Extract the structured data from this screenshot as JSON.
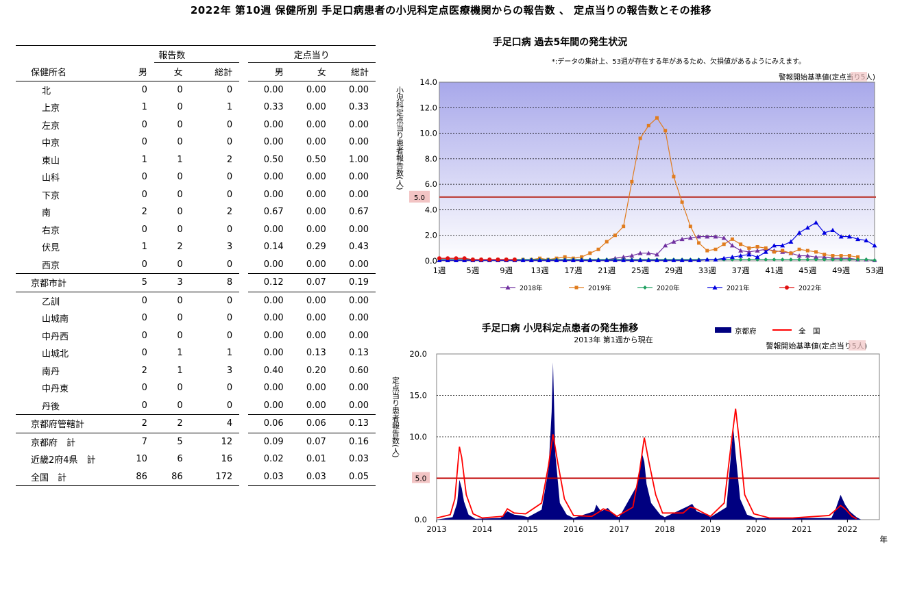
{
  "page_title": "2022年 第10週 保健所別 手足口病患者の小児科定点医療機関からの報告数 、 定点当りの報告数とその推移",
  "table": {
    "group_headers": {
      "reports": "報告数",
      "per_site": "定点当り"
    },
    "columns": [
      "保健所名",
      "男",
      "女",
      "総計",
      "男",
      "女",
      "総計"
    ],
    "rows": [
      {
        "name": "北",
        "m": "0",
        "f": "0",
        "t": "0",
        "pm": "0.00",
        "pf": "0.00",
        "pt": "0.00",
        "kind": "sub"
      },
      {
        "name": "上京",
        "m": "1",
        "f": "0",
        "t": "1",
        "pm": "0.33",
        "pf": "0.00",
        "pt": "0.33",
        "kind": "sub"
      },
      {
        "name": "左京",
        "m": "0",
        "f": "0",
        "t": "0",
        "pm": "0.00",
        "pf": "0.00",
        "pt": "0.00",
        "kind": "sub"
      },
      {
        "name": "中京",
        "m": "0",
        "f": "0",
        "t": "0",
        "pm": "0.00",
        "pf": "0.00",
        "pt": "0.00",
        "kind": "sub"
      },
      {
        "name": "東山",
        "m": "1",
        "f": "1",
        "t": "2",
        "pm": "0.50",
        "pf": "0.50",
        "pt": "1.00",
        "kind": "sub"
      },
      {
        "name": "山科",
        "m": "0",
        "f": "0",
        "t": "0",
        "pm": "0.00",
        "pf": "0.00",
        "pt": "0.00",
        "kind": "sub"
      },
      {
        "name": "下京",
        "m": "0",
        "f": "0",
        "t": "0",
        "pm": "0.00",
        "pf": "0.00",
        "pt": "0.00",
        "kind": "sub"
      },
      {
        "name": "南",
        "m": "2",
        "f": "0",
        "t": "2",
        "pm": "0.67",
        "pf": "0.00",
        "pt": "0.67",
        "kind": "sub"
      },
      {
        "name": "右京",
        "m": "0",
        "f": "0",
        "t": "0",
        "pm": "0.00",
        "pf": "0.00",
        "pt": "0.00",
        "kind": "sub"
      },
      {
        "name": "伏見",
        "m": "1",
        "f": "2",
        "t": "3",
        "pm": "0.14",
        "pf": "0.29",
        "pt": "0.43",
        "kind": "sub"
      },
      {
        "name": "西京",
        "m": "0",
        "f": "0",
        "t": "0",
        "pm": "0.00",
        "pf": "0.00",
        "pt": "0.00",
        "kind": "sub-last"
      },
      {
        "name": "京都市計",
        "m": "5",
        "f": "3",
        "t": "8",
        "pm": "0.12",
        "pf": "0.07",
        "pt": "0.19",
        "kind": "total"
      },
      {
        "name": "乙訓",
        "m": "0",
        "f": "0",
        "t": "0",
        "pm": "0.00",
        "pf": "0.00",
        "pt": "0.00",
        "kind": "sub"
      },
      {
        "name": "山城南",
        "m": "0",
        "f": "0",
        "t": "0",
        "pm": "0.00",
        "pf": "0.00",
        "pt": "0.00",
        "kind": "sub"
      },
      {
        "name": "中丹西",
        "m": "0",
        "f": "0",
        "t": "0",
        "pm": "0.00",
        "pf": "0.00",
        "pt": "0.00",
        "kind": "sub"
      },
      {
        "name": "山城北",
        "m": "0",
        "f": "1",
        "t": "1",
        "pm": "0.00",
        "pf": "0.13",
        "pt": "0.13",
        "kind": "sub"
      },
      {
        "name": "南丹",
        "m": "2",
        "f": "1",
        "t": "3",
        "pm": "0.40",
        "pf": "0.20",
        "pt": "0.60",
        "kind": "sub"
      },
      {
        "name": "中丹東",
        "m": "0",
        "f": "0",
        "t": "0",
        "pm": "0.00",
        "pf": "0.00",
        "pt": "0.00",
        "kind": "sub"
      },
      {
        "name": "丹後",
        "m": "0",
        "f": "0",
        "t": "0",
        "pm": "0.00",
        "pf": "0.00",
        "pt": "0.00",
        "kind": "sub-last"
      },
      {
        "name": "京都府管轄計",
        "m": "2",
        "f": "2",
        "t": "4",
        "pm": "0.06",
        "pf": "0.06",
        "pt": "0.13",
        "kind": "total"
      },
      {
        "name": "京都府　計",
        "m": "7",
        "f": "5",
        "t": "12",
        "pm": "0.09",
        "pf": "0.07",
        "pt": "0.16",
        "kind": "grand"
      },
      {
        "name": "近畿2府4県　計",
        "m": "10",
        "f": "6",
        "t": "16",
        "pm": "0.02",
        "pf": "0.01",
        "pt": "0.03",
        "kind": "grand"
      },
      {
        "name": "全国　計",
        "m": "86",
        "f": "86",
        "t": "172",
        "pm": "0.03",
        "pf": "0.03",
        "pt": "0.05",
        "kind": "grand-last"
      }
    ]
  },
  "chart_data": [
    {
      "type": "line",
      "title": "手足口病 過去5年間の発生状況",
      "note": "*:データの集計上、53週が存在する年があるため、欠損値があるようにみえます。",
      "threshold_label": "警報開始基準値(定点当り5人)",
      "threshold_label_prefix": "警報開始基準値(定点当り",
      "threshold_label_hl": "5人",
      "threshold_label_suffix": ")",
      "threshold": 5.0,
      "threshold_tag": "5.0",
      "ylabel": "小児科定点当り患者報告数(人)",
      "ylim": [
        0,
        14
      ],
      "yticks": [
        "0.0",
        "2.0",
        "4.0",
        "6.0",
        "8.0",
        "10.0",
        "12.0",
        "14.0"
      ],
      "xticks": [
        "1週",
        "5週",
        "9週",
        "13週",
        "17週",
        "21週",
        "25週",
        "29週",
        "33週",
        "37週",
        "41週",
        "45週",
        "49週",
        "53週"
      ],
      "xlim": [
        1,
        53
      ],
      "colors": {
        "2018": "#7030a0",
        "2019": "#e07c1e",
        "2020": "#1fa060",
        "2021": "#0000e0",
        "2022": "#e01010",
        "threshold": "#c0504d",
        "band": "#b8b8ee"
      },
      "series": [
        {
          "name": "2018年",
          "marker": "triangle",
          "values": [
            0.05,
            0.05,
            0.05,
            0.05,
            0.05,
            0.05,
            0.05,
            0.05,
            0.05,
            0.05,
            0.05,
            0.05,
            0.05,
            0.05,
            0.05,
            0.05,
            0.05,
            0.05,
            0.05,
            0.05,
            0.1,
            0.2,
            0.3,
            0.4,
            0.6,
            0.6,
            0.5,
            1.2,
            1.5,
            1.7,
            1.8,
            1.9,
            1.9,
            1.9,
            1.8,
            1.2,
            0.8,
            0.7,
            0.8,
            0.9,
            0.8,
            0.7,
            0.6,
            0.4,
            0.4,
            0.3,
            0.3,
            0.2,
            0.2,
            0.2,
            0.1,
            0.1,
            0.05
          ]
        },
        {
          "name": "2019年",
          "marker": "square",
          "values": [
            0.1,
            0.1,
            0.1,
            0.1,
            0.1,
            0.1,
            0.1,
            0.1,
            0.1,
            0.1,
            0.1,
            0.1,
            0.2,
            0.1,
            0.2,
            0.3,
            0.2,
            0.3,
            0.6,
            0.9,
            1.5,
            2.0,
            2.7,
            6.2,
            9.6,
            10.6,
            11.2,
            10.2,
            6.6,
            4.6,
            2.7,
            1.4,
            0.8,
            0.9,
            1.3,
            1.7,
            1.3,
            1.0,
            1.1,
            1.0,
            0.7,
            0.8,
            0.6,
            0.9,
            0.8,
            0.7,
            0.5,
            0.4,
            0.4,
            0.4,
            0.3,
            null,
            null
          ]
        },
        {
          "name": "2020年",
          "marker": "diamond",
          "values": [
            0.1,
            0.1,
            0.1,
            0.1,
            0.1,
            0.1,
            0.1,
            0.1,
            0.1,
            0.1,
            0.1,
            0.1,
            0.1,
            0.1,
            0.1,
            0.1,
            0.1,
            0.1,
            0.1,
            0.1,
            0.1,
            0.1,
            0.1,
            0.1,
            0.1,
            0.1,
            0.1,
            0.1,
            0.1,
            0.1,
            0.1,
            0.1,
            0.1,
            0.1,
            0.1,
            0.1,
            0.1,
            0.1,
            0.1,
            0.1,
            0.1,
            0.1,
            0.1,
            0.1,
            0.1,
            0.1,
            0.1,
            0.1,
            0.1,
            0.1,
            0.1,
            0.1,
            0.05
          ]
        },
        {
          "name": "2021年",
          "marker": "triangle",
          "values": [
            0.05,
            0.05,
            0.05,
            0.05,
            0.05,
            0.05,
            0.05,
            0.05,
            0.05,
            0.05,
            0.05,
            0.05,
            0.05,
            0.05,
            0.05,
            0.05,
            0.05,
            0.05,
            0.05,
            0.05,
            0.05,
            0.05,
            0.05,
            0.05,
            0.05,
            0.05,
            0.05,
            0.05,
            0.05,
            0.05,
            0.05,
            0.05,
            0.1,
            0.1,
            0.2,
            0.3,
            0.4,
            0.5,
            0.3,
            0.7,
            1.2,
            1.2,
            1.5,
            2.2,
            2.6,
            3.0,
            2.2,
            2.4,
            1.9,
            1.9,
            1.7,
            1.6,
            1.2
          ]
        },
        {
          "name": "2022年",
          "marker": "circle",
          "values": [
            0.2,
            0.2,
            0.2,
            0.2,
            0.1,
            0.1,
            0.1,
            0.1,
            0.1,
            0.1,
            null,
            null,
            null,
            null,
            null,
            null,
            null,
            null,
            null,
            null,
            null,
            null,
            null,
            null,
            null,
            null,
            null,
            null,
            null,
            null,
            null,
            null,
            null,
            null,
            null,
            null,
            null,
            null,
            null,
            null,
            null,
            null,
            null,
            null,
            null,
            null,
            null,
            null,
            null,
            null,
            null,
            null,
            null
          ]
        }
      ]
    },
    {
      "type": "area",
      "title": "手足口病 小児科定点患者の発生推移",
      "subtitle": "2013年 第1週から現在",
      "threshold_label": "警報開始基準値(定点当り5人)",
      "threshold_label_prefix": "警報開始基準値(定点当り",
      "threshold_label_hl": "5人",
      "threshold_label_suffix": ")",
      "threshold": 5.0,
      "threshold_tag": "5.0",
      "ylabel": "定点当り患者報告数(人)",
      "xlabel": "年",
      "ylim": [
        0,
        20
      ],
      "yticks": [
        "0.0",
        "5.0",
        "10.0",
        "15.0",
        "20.0"
      ],
      "xticks": [
        "2013",
        "2014",
        "2015",
        "2016",
        "2017",
        "2018",
        "2019",
        "2020",
        "2021",
        "2022"
      ],
      "xlim": [
        2013,
        2022.7
      ],
      "colors": {
        "kyoto": "#000080",
        "national": "#ff0000",
        "threshold": "#c00000"
      },
      "series": [
        {
          "name": "京都府",
          "style": "area",
          "points": [
            [
              2013.0,
              0
            ],
            [
              2013.35,
              0.3
            ],
            [
              2013.45,
              2
            ],
            [
              2013.5,
              4.8
            ],
            [
              2013.55,
              3.8
            ],
            [
              2013.6,
              2.2
            ],
            [
              2013.7,
              0.6
            ],
            [
              2013.85,
              0.1
            ],
            [
              2014.4,
              0.2
            ],
            [
              2014.55,
              1.0
            ],
            [
              2014.7,
              0.6
            ],
            [
              2014.85,
              0.5
            ],
            [
              2015.0,
              0.3
            ],
            [
              2015.3,
              1.2
            ],
            [
              2015.45,
              6
            ],
            [
              2015.52,
              13
            ],
            [
              2015.55,
              19
            ],
            [
              2015.6,
              8
            ],
            [
              2015.7,
              2
            ],
            [
              2015.85,
              0.6
            ],
            [
              2016.0,
              0.2
            ],
            [
              2016.45,
              1.0
            ],
            [
              2016.5,
              1.8
            ],
            [
              2016.6,
              1.0
            ],
            [
              2016.75,
              1.4
            ],
            [
              2016.9,
              0.5
            ],
            [
              2017.0,
              0.3
            ],
            [
              2017.4,
              4.2
            ],
            [
              2017.5,
              8
            ],
            [
              2017.55,
              7
            ],
            [
              2017.6,
              4.3
            ],
            [
              2017.7,
              2.0
            ],
            [
              2017.9,
              0.6
            ],
            [
              2018.0,
              0.3
            ],
            [
              2018.5,
              1.6
            ],
            [
              2018.6,
              1.9
            ],
            [
              2018.7,
              1.0
            ],
            [
              2018.9,
              0.6
            ],
            [
              2019.0,
              0.3
            ],
            [
              2019.35,
              1.5
            ],
            [
              2019.45,
              8
            ],
            [
              2019.5,
              11
            ],
            [
              2019.55,
              8
            ],
            [
              2019.65,
              2.5
            ],
            [
              2019.8,
              0.6
            ],
            [
              2020.0,
              0.2
            ],
            [
              2021.65,
              0.2
            ],
            [
              2021.75,
              1.4
            ],
            [
              2021.85,
              3.0
            ],
            [
              2021.95,
              1.8
            ],
            [
              2022.05,
              1.0
            ],
            [
              2022.2,
              0.3
            ],
            [
              2022.3,
              0
            ]
          ]
        },
        {
          "name": "全　国",
          "style": "line",
          "points": [
            [
              2013.0,
              0.2
            ],
            [
              2013.3,
              0.6
            ],
            [
              2013.4,
              2.5
            ],
            [
              2013.5,
              8.8
            ],
            [
              2013.55,
              7.5
            ],
            [
              2013.65,
              3
            ],
            [
              2013.8,
              0.7
            ],
            [
              2014.0,
              0.2
            ],
            [
              2014.45,
              0.4
            ],
            [
              2014.55,
              1.3
            ],
            [
              2014.7,
              0.8
            ],
            [
              2014.95,
              0.7
            ],
            [
              2015.3,
              2
            ],
            [
              2015.45,
              6.5
            ],
            [
              2015.55,
              10.3
            ],
            [
              2015.65,
              7
            ],
            [
              2015.8,
              2.5
            ],
            [
              2016.0,
              0.5
            ],
            [
              2016.4,
              0.4
            ],
            [
              2016.55,
              0.9
            ],
            [
              2016.65,
              1.3
            ],
            [
              2016.8,
              1.0
            ],
            [
              2016.95,
              0.4
            ],
            [
              2017.3,
              1.5
            ],
            [
              2017.45,
              6
            ],
            [
              2017.55,
              9.9
            ],
            [
              2017.65,
              7
            ],
            [
              2017.8,
              3
            ],
            [
              2017.95,
              0.8
            ],
            [
              2018.4,
              0.8
            ],
            [
              2018.55,
              1.5
            ],
            [
              2018.65,
              1.4
            ],
            [
              2018.85,
              0.8
            ],
            [
              2019.0,
              0.4
            ],
            [
              2019.3,
              2
            ],
            [
              2019.45,
              9
            ],
            [
              2019.55,
              13.4
            ],
            [
              2019.62,
              10
            ],
            [
              2019.75,
              3
            ],
            [
              2019.95,
              0.7
            ],
            [
              2020.3,
              0.2
            ],
            [
              2020.8,
              0.2
            ],
            [
              2021.6,
              0.5
            ],
            [
              2021.75,
              1.2
            ],
            [
              2021.85,
              1.7
            ],
            [
              2021.95,
              1.3
            ],
            [
              2022.1,
              0.4
            ],
            [
              2022.2,
              0.1
            ]
          ]
        }
      ]
    }
  ]
}
